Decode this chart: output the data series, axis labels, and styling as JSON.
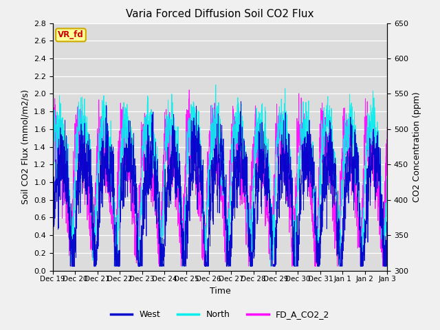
{
  "title": "Varia Forced Diffusion Soil CO2 Flux",
  "xlabel": "Time",
  "ylabel_left": "Soil CO2 Flux (mmol/m2/s)",
  "ylabel_right": "CO2 Concentration (ppm)",
  "ylim_left": [
    0.0,
    2.8
  ],
  "ylim_right": [
    300,
    650
  ],
  "xtick_labels": [
    "Dec 19",
    "Dec 20",
    "Dec 21",
    "Dec 22",
    "Dec 23",
    "Dec 24",
    "Dec 25",
    "Dec 26",
    "Dec 27",
    "Dec 28",
    "Dec 29",
    "Dec 30",
    "Dec 31",
    "Jan 1",
    "Jan 2",
    "Jan 3"
  ],
  "yticks_left": [
    0.0,
    0.2,
    0.4,
    0.6,
    0.8,
    1.0,
    1.2,
    1.4,
    1.6,
    1.8,
    2.0,
    2.2,
    2.4,
    2.6,
    2.8
  ],
  "yticks_right": [
    300,
    350,
    400,
    450,
    500,
    550,
    600,
    650
  ],
  "color_west": "#0000CC",
  "color_north": "#00EEEE",
  "color_fd": "#FF00FF",
  "legend_labels": [
    "West",
    "North",
    "FD_A_CO2_2"
  ],
  "annotation_text": "VR_fd",
  "annotation_box_color": "#FFFF99",
  "annotation_text_color": "#CC0000",
  "annotation_edge_color": "#CCAA00",
  "plot_bg_color": "#DCDCDC",
  "fig_bg_color": "#F0F0F0",
  "grid_color": "#FFFFFF",
  "seed": 7,
  "n_points": 3000
}
